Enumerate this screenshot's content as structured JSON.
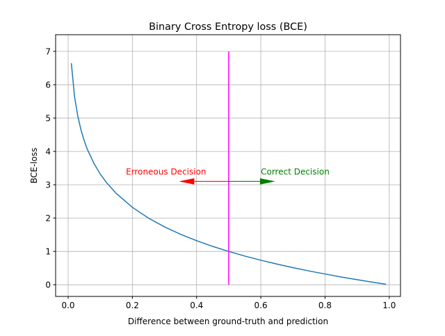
{
  "chart_data": {
    "type": "line",
    "title": "Binary Cross Entropy loss (BCE)",
    "xlabel": "Difference between ground-truth and prediction",
    "ylabel": "BCE-loss",
    "xlim": [
      -0.039,
      1.035
    ],
    "ylim": [
      -0.35,
      7.5
    ],
    "grid": true,
    "xticks": [
      0.0,
      0.2,
      0.4,
      0.6,
      0.8,
      1.0
    ],
    "xtick_labels": [
      "0.0",
      "0.2",
      "0.4",
      "0.6",
      "0.8",
      "1.0"
    ],
    "yticks": [
      0,
      1,
      2,
      3,
      4,
      5,
      6,
      7
    ],
    "ytick_labels": [
      "0",
      "1",
      "2",
      "3",
      "4",
      "5",
      "6",
      "7"
    ],
    "series": [
      {
        "name": "BCE",
        "color": "#1f77b4",
        "x": [
          0.01,
          0.02,
          0.03,
          0.04,
          0.05,
          0.06,
          0.08,
          0.1,
          0.12,
          0.15,
          0.2,
          0.25,
          0.3,
          0.35,
          0.4,
          0.45,
          0.5,
          0.55,
          0.6,
          0.65,
          0.7,
          0.75,
          0.8,
          0.85,
          0.9,
          0.95,
          0.99
        ],
        "y": [
          6.644,
          5.644,
          5.059,
          4.644,
          4.322,
          4.059,
          3.644,
          3.322,
          3.059,
          2.737,
          2.322,
          2.0,
          1.737,
          1.515,
          1.322,
          1.152,
          1.0,
          0.862,
          0.737,
          0.621,
          0.515,
          0.415,
          0.322,
          0.234,
          0.152,
          0.074,
          0.0145
        ]
      }
    ],
    "vline": {
      "x": 0.5,
      "ymin": 0,
      "ymax": 7,
      "color": "#ff00ff"
    },
    "arrows": [
      {
        "from": [
          0.5,
          3.1
        ],
        "to": [
          0.345,
          3.1
        ],
        "color": "#ff0000"
      },
      {
        "from": [
          0.5,
          3.1
        ],
        "to": [
          0.645,
          3.1
        ],
        "color": "#008000"
      }
    ],
    "annotations": [
      {
        "text": "Erroneous Decision",
        "x": 0.18,
        "y": 3.3,
        "color": "#ff0000"
      },
      {
        "text": "Correct Decision",
        "x": 0.6,
        "y": 3.3,
        "color": "#008000"
      }
    ]
  }
}
